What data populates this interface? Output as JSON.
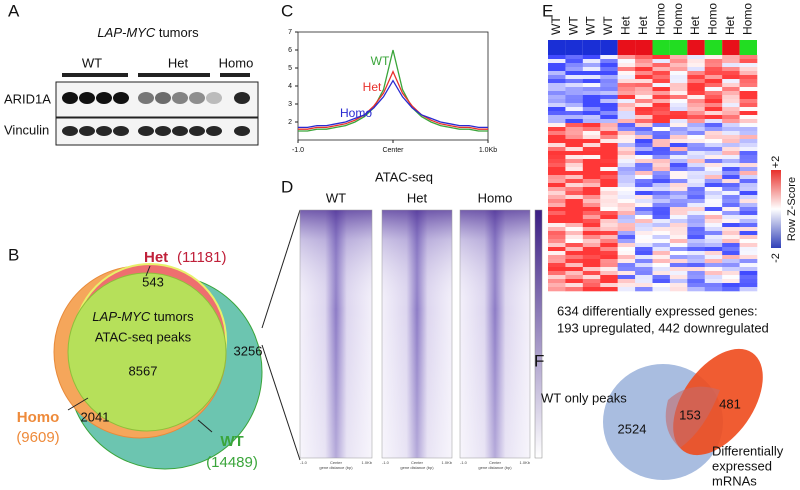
{
  "panels": {
    "a": {
      "label": "A",
      "title_italic": "LAP-MYC",
      "title_rest": "tumors",
      "groups": [
        "WT",
        "Het",
        "Homo"
      ],
      "blots": [
        "ARID1A",
        "Vinculin"
      ]
    },
    "b": {
      "label": "B",
      "het_name": "Het",
      "het_count": "(11181)",
      "homo_name": "Homo",
      "homo_count": "(9609)",
      "wt_name": "WT",
      "wt_count": "(14489)",
      "inner_italic": "LAP-MYC",
      "inner_rest": "tumors",
      "inner_line2": "ATAC-seq peaks",
      "het_only": "543",
      "shared": "8567",
      "wt_only": "3256",
      "homo_wt": "2041"
    },
    "c": {
      "label": "C"
    },
    "d": {
      "label": "D",
      "title": "ATAC-seq",
      "columns": [
        "WT",
        "Het",
        "Homo"
      ],
      "axis_labels": [
        "-1.0",
        "Center",
        "1.0Kb"
      ],
      "axis_title": "gene distance (bp)"
    },
    "e": {
      "label": "E",
      "columns": [
        "WT",
        "WT",
        "WT",
        "WT",
        "Het",
        "Het",
        "Homo",
        "Homo",
        "Het",
        "Homo",
        "Het",
        "Homo"
      ],
      "scale_high": "+2",
      "scale_low": "-2",
      "scale_title": "Row Z-Score",
      "caption1": "634 differentially expressed genes:",
      "caption2": "193 upregulated, 442 downregulated"
    },
    "f": {
      "label": "F",
      "left_name": "WT only peaks",
      "left_count": "2524",
      "overlap": "153",
      "right_count": "481",
      "right_name": [
        "Differentially",
        "expressed",
        "mRNAs"
      ]
    }
  },
  "chart_data": {
    "type": "line",
    "x": [
      -1.0,
      -0.9,
      -0.8,
      -0.7,
      -0.6,
      -0.5,
      -0.4,
      -0.3,
      -0.2,
      -0.1,
      0.0,
      0.1,
      0.2,
      0.3,
      0.4,
      0.5,
      0.6,
      0.7,
      0.8,
      0.9,
      1.0
    ],
    "xlim": [
      -1,
      1
    ],
    "xticks": [
      {
        "value": -1,
        "label": "-1.0"
      },
      {
        "value": 0,
        "label": "Center"
      },
      {
        "value": 1,
        "label": "1.0Kb"
      }
    ],
    "ylim": [
      1,
      7
    ],
    "yticks": [
      2,
      3,
      4,
      5,
      6,
      7
    ],
    "series": [
      {
        "name": "WT",
        "color": "#3aa53a",
        "values": [
          1.5,
          1.5,
          1.6,
          1.6,
          1.7,
          1.8,
          2.0,
          2.3,
          2.8,
          3.8,
          6.0,
          3.8,
          2.8,
          2.3,
          2.0,
          1.8,
          1.7,
          1.6,
          1.6,
          1.5,
          1.5
        ]
      },
      {
        "name": "Het",
        "color": "#e8302b",
        "values": [
          1.6,
          1.6,
          1.7,
          1.7,
          1.8,
          1.9,
          2.1,
          2.4,
          2.9,
          3.6,
          4.8,
          3.6,
          2.9,
          2.4,
          2.1,
          1.9,
          1.8,
          1.7,
          1.7,
          1.6,
          1.6
        ]
      },
      {
        "name": "Homo",
        "color": "#2a2ad0",
        "values": [
          1.7,
          1.7,
          1.8,
          1.8,
          1.9,
          2.0,
          2.2,
          2.4,
          2.8,
          3.4,
          4.3,
          3.4,
          2.8,
          2.4,
          2.2,
          2.0,
          1.9,
          1.8,
          1.8,
          1.7,
          1.7
        ]
      }
    ]
  }
}
